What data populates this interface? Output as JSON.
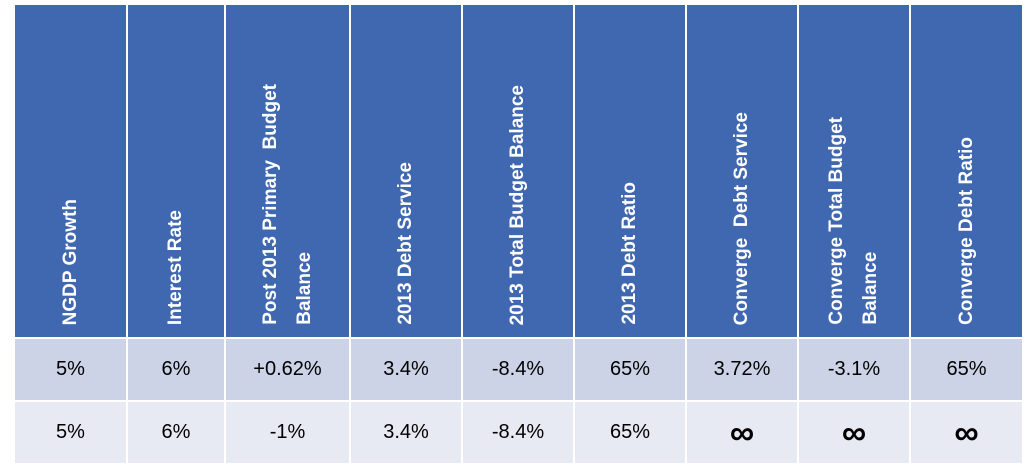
{
  "table": {
    "headers": [
      "NGDP Growth",
      "Interest Rate",
      "Post 2013 Primary  Budget\nBalance",
      "2013 Debt Service",
      "2013 Total Budget Balance",
      "2013 Debt Ratio",
      "Converge  Debt Service",
      "Converge Total Budget\nBalance",
      "Converge Debt Ratio"
    ],
    "rows": [
      [
        "5%",
        "6%",
        "+0.62%",
        "3.4%",
        "-8.4%",
        "65%",
        "3.72%",
        "-3.1%",
        "65%"
      ],
      [
        "5%",
        "6%",
        "-1%",
        "3.4%",
        "-8.4%",
        "65%",
        "∞",
        "∞",
        "∞"
      ]
    ]
  },
  "colors": {
    "header_bg": "#3f68b0",
    "header_text": "#ffffff",
    "row_odd_bg": "#cdd3e6",
    "row_even_bg": "#e7eaf3"
  }
}
